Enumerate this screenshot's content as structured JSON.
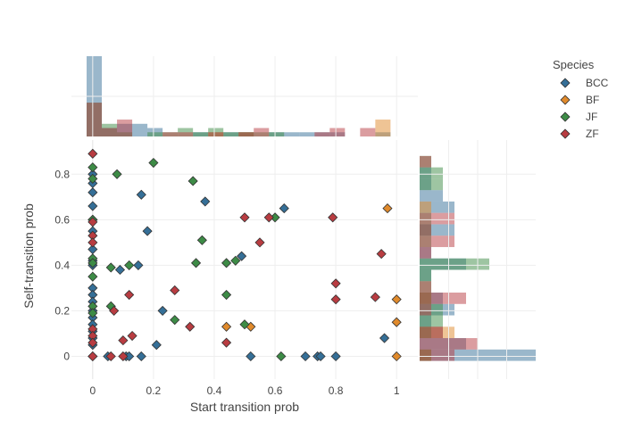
{
  "chart_data": {
    "type": "scatter",
    "xlabel": "Start transition prob",
    "ylabel": "Self-transition prob",
    "xlim": [
      -0.07,
      1.07
    ],
    "ylim": [
      -0.1,
      0.95
    ],
    "x_ticks": [
      "0",
      "0.2",
      "0.4",
      "0.6",
      "0.8",
      "1"
    ],
    "y_ticks": [
      "0",
      "0.2",
      "0.4",
      "0.6",
      "0.8"
    ],
    "grid": true,
    "marker": "diamond",
    "marginal_x": "histogram",
    "marginal_y": "histogram",
    "legend": {
      "title": "Species",
      "placement": "top-right"
    },
    "series": [
      {
        "name": "BCC",
        "color": "#356f97",
        "points": [
          [
            0,
            0.8
          ],
          [
            0,
            0.76
          ],
          [
            0,
            0.72
          ],
          [
            0,
            0.66
          ],
          [
            0,
            0.6
          ],
          [
            0,
            0.55
          ],
          [
            0,
            0.47
          ],
          [
            0,
            0.42
          ],
          [
            0,
            0.4
          ],
          [
            0,
            0.3
          ],
          [
            0,
            0.27
          ],
          [
            0,
            0.24
          ],
          [
            0,
            0.2
          ],
          [
            0,
            0.17
          ],
          [
            0,
            0.14
          ],
          [
            0,
            0.11
          ],
          [
            0,
            0.08
          ],
          [
            0,
            0.05
          ],
          [
            0,
            0.0
          ],
          [
            0.05,
            0.0
          ],
          [
            0.09,
            0.38
          ],
          [
            0.11,
            0.0
          ],
          [
            0.12,
            0.0
          ],
          [
            0.15,
            0.4
          ],
          [
            0.16,
            0.0
          ],
          [
            0.16,
            0.71
          ],
          [
            0.18,
            0.55
          ],
          [
            0.21,
            0.05
          ],
          [
            0.23,
            0.2
          ],
          [
            0.37,
            0.68
          ],
          [
            0.49,
            0.44
          ],
          [
            0.52,
            0.0
          ],
          [
            0.63,
            0.65
          ],
          [
            0.7,
            0.0
          ],
          [
            0.74,
            0.0
          ],
          [
            0.75,
            0.0
          ],
          [
            0.8,
            0.0
          ],
          [
            0.96,
            0.08
          ]
        ]
      },
      {
        "name": "BF",
        "color": "#e08a2c",
        "points": [
          [
            0.44,
            0.13
          ],
          [
            0.52,
            0.13
          ],
          [
            0.97,
            0.65
          ],
          [
            1.0,
            0.25
          ],
          [
            1.0,
            0.15
          ],
          [
            1.0,
            0.0
          ]
        ]
      },
      {
        "name": "JF",
        "color": "#3d8b46",
        "points": [
          [
            0,
            0.83
          ],
          [
            0,
            0.78
          ],
          [
            0,
            0.6
          ],
          [
            0,
            0.43
          ],
          [
            0,
            0.41
          ],
          [
            0,
            0.35
          ],
          [
            0,
            0.22
          ],
          [
            0,
            0.19
          ],
          [
            0.06,
            0.39
          ],
          [
            0.06,
            0.22
          ],
          [
            0.08,
            0.8
          ],
          [
            0.12,
            0.4
          ],
          [
            0.2,
            0.85
          ],
          [
            0.27,
            0.16
          ],
          [
            0.33,
            0.77
          ],
          [
            0.34,
            0.41
          ],
          [
            0.36,
            0.51
          ],
          [
            0.44,
            0.41
          ],
          [
            0.44,
            0.27
          ],
          [
            0.47,
            0.42
          ],
          [
            0.5,
            0.14
          ],
          [
            0.6,
            0.61
          ],
          [
            0.62,
            0.0
          ]
        ]
      },
      {
        "name": "ZF",
        "color": "#b83c41",
        "points": [
          [
            0,
            0.89
          ],
          [
            0,
            0.59
          ],
          [
            0,
            0.53
          ],
          [
            0,
            0.5
          ],
          [
            0,
            0.12
          ],
          [
            0,
            0.09
          ],
          [
            0,
            0.06
          ],
          [
            0,
            0.0
          ],
          [
            0.06,
            0.0
          ],
          [
            0.07,
            0.2
          ],
          [
            0.1,
            0.07
          ],
          [
            0.1,
            0.0
          ],
          [
            0.12,
            0.27
          ],
          [
            0.13,
            0.09
          ],
          [
            0.27,
            0.29
          ],
          [
            0.32,
            0.13
          ],
          [
            0.44,
            0.06
          ],
          [
            0.5,
            0.61
          ],
          [
            0.55,
            0.5
          ],
          [
            0.58,
            0.61
          ],
          [
            0.79,
            0.61
          ],
          [
            0.8,
            0.32
          ],
          [
            0.8,
            0.25
          ],
          [
            0.93,
            0.26
          ],
          [
            0.95,
            0.45
          ]
        ]
      }
    ]
  }
}
